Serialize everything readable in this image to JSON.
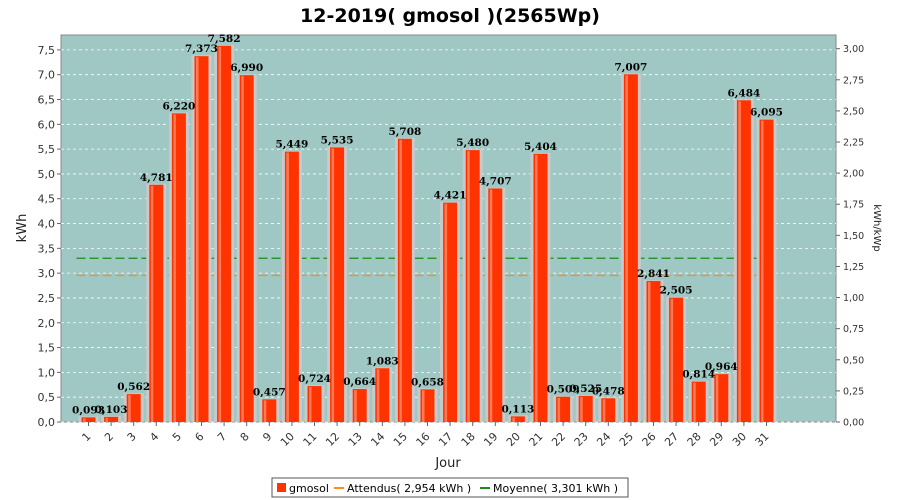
{
  "chart_data": {
    "type": "bar",
    "title": "12-2019( gmosol )(2565Wp)",
    "xlabel": "Jour",
    "ylabel": "kWh",
    "ylabel_right": "kWh/kWp",
    "ylim": [
      0,
      7.8
    ],
    "ylim_right": [
      0,
      3.11
    ],
    "yticks": [
      "0,0",
      "0,5",
      "1,0",
      "1,5",
      "2,0",
      "2,5",
      "3,0",
      "3,5",
      "4,0",
      "4,5",
      "5,0",
      "5,5",
      "6,0",
      "6,5",
      "7,0",
      "7,5"
    ],
    "yticks_right": [
      "0,00",
      "0,25",
      "0,50",
      "0,75",
      "1,00",
      "1,25",
      "1,50",
      "1,75",
      "2,00",
      "2,25",
      "2,50",
      "2,75",
      "3,00"
    ],
    "categories": [
      "1",
      "2",
      "3",
      "4",
      "5",
      "6",
      "7",
      "8",
      "9",
      "10",
      "11",
      "12",
      "13",
      "14",
      "15",
      "16",
      "17",
      "18",
      "19",
      "20",
      "21",
      "22",
      "23",
      "24",
      "25",
      "26",
      "27",
      "28",
      "29",
      "30",
      "31"
    ],
    "series": [
      {
        "name": "gmosol",
        "values": [
          0.093,
          0.103,
          0.562,
          4.781,
          6.22,
          7.373,
          7.582,
          6.99,
          0.457,
          5.449,
          0.724,
          5.535,
          0.664,
          1.083,
          5.708,
          0.658,
          4.421,
          5.48,
          4.707,
          0.113,
          5.404,
          0.509,
          0.525,
          0.478,
          7.007,
          2.841,
          2.505,
          0.814,
          0.964,
          6.484,
          6.095
        ],
        "labels": [
          "0,093",
          "0,103",
          "0,562",
          "4,781",
          "6,220",
          "7,373",
          "7,582",
          "6,990",
          "0,457",
          "5,449",
          "0,724",
          "5,535",
          "0,664",
          "1,083",
          "5,708",
          "0,658",
          "4,421",
          "5,480",
          "4,707",
          "0,113",
          "5,404",
          "0,509",
          "0,525",
          "0,478",
          "7,007",
          "2,841",
          "2,505",
          "0,814",
          "0,964",
          "6,484",
          "6,095"
        ]
      }
    ],
    "reference_lines": [
      {
        "name": "Attendus( 2,954 kWh )",
        "value": 2.954
      },
      {
        "name": "Moyenne( 3,301 kWh )",
        "value": 3.301
      }
    ],
    "legend": {
      "position": "bottom",
      "items": [
        "gmosol",
        "Attendus( 2,954 kWh )",
        "Moyenne( 3,301 kWh )"
      ]
    },
    "colors": {
      "bar": "#ff3300",
      "bar_highlight": "#ff7a55",
      "bar_shadow": "#c9c9c9",
      "plot_bg": "#9fc7c3",
      "attendus": "#ff8c1a",
      "moyenne": "#1a8c1a",
      "grid": "#ffffff"
    },
    "grid": true
  }
}
